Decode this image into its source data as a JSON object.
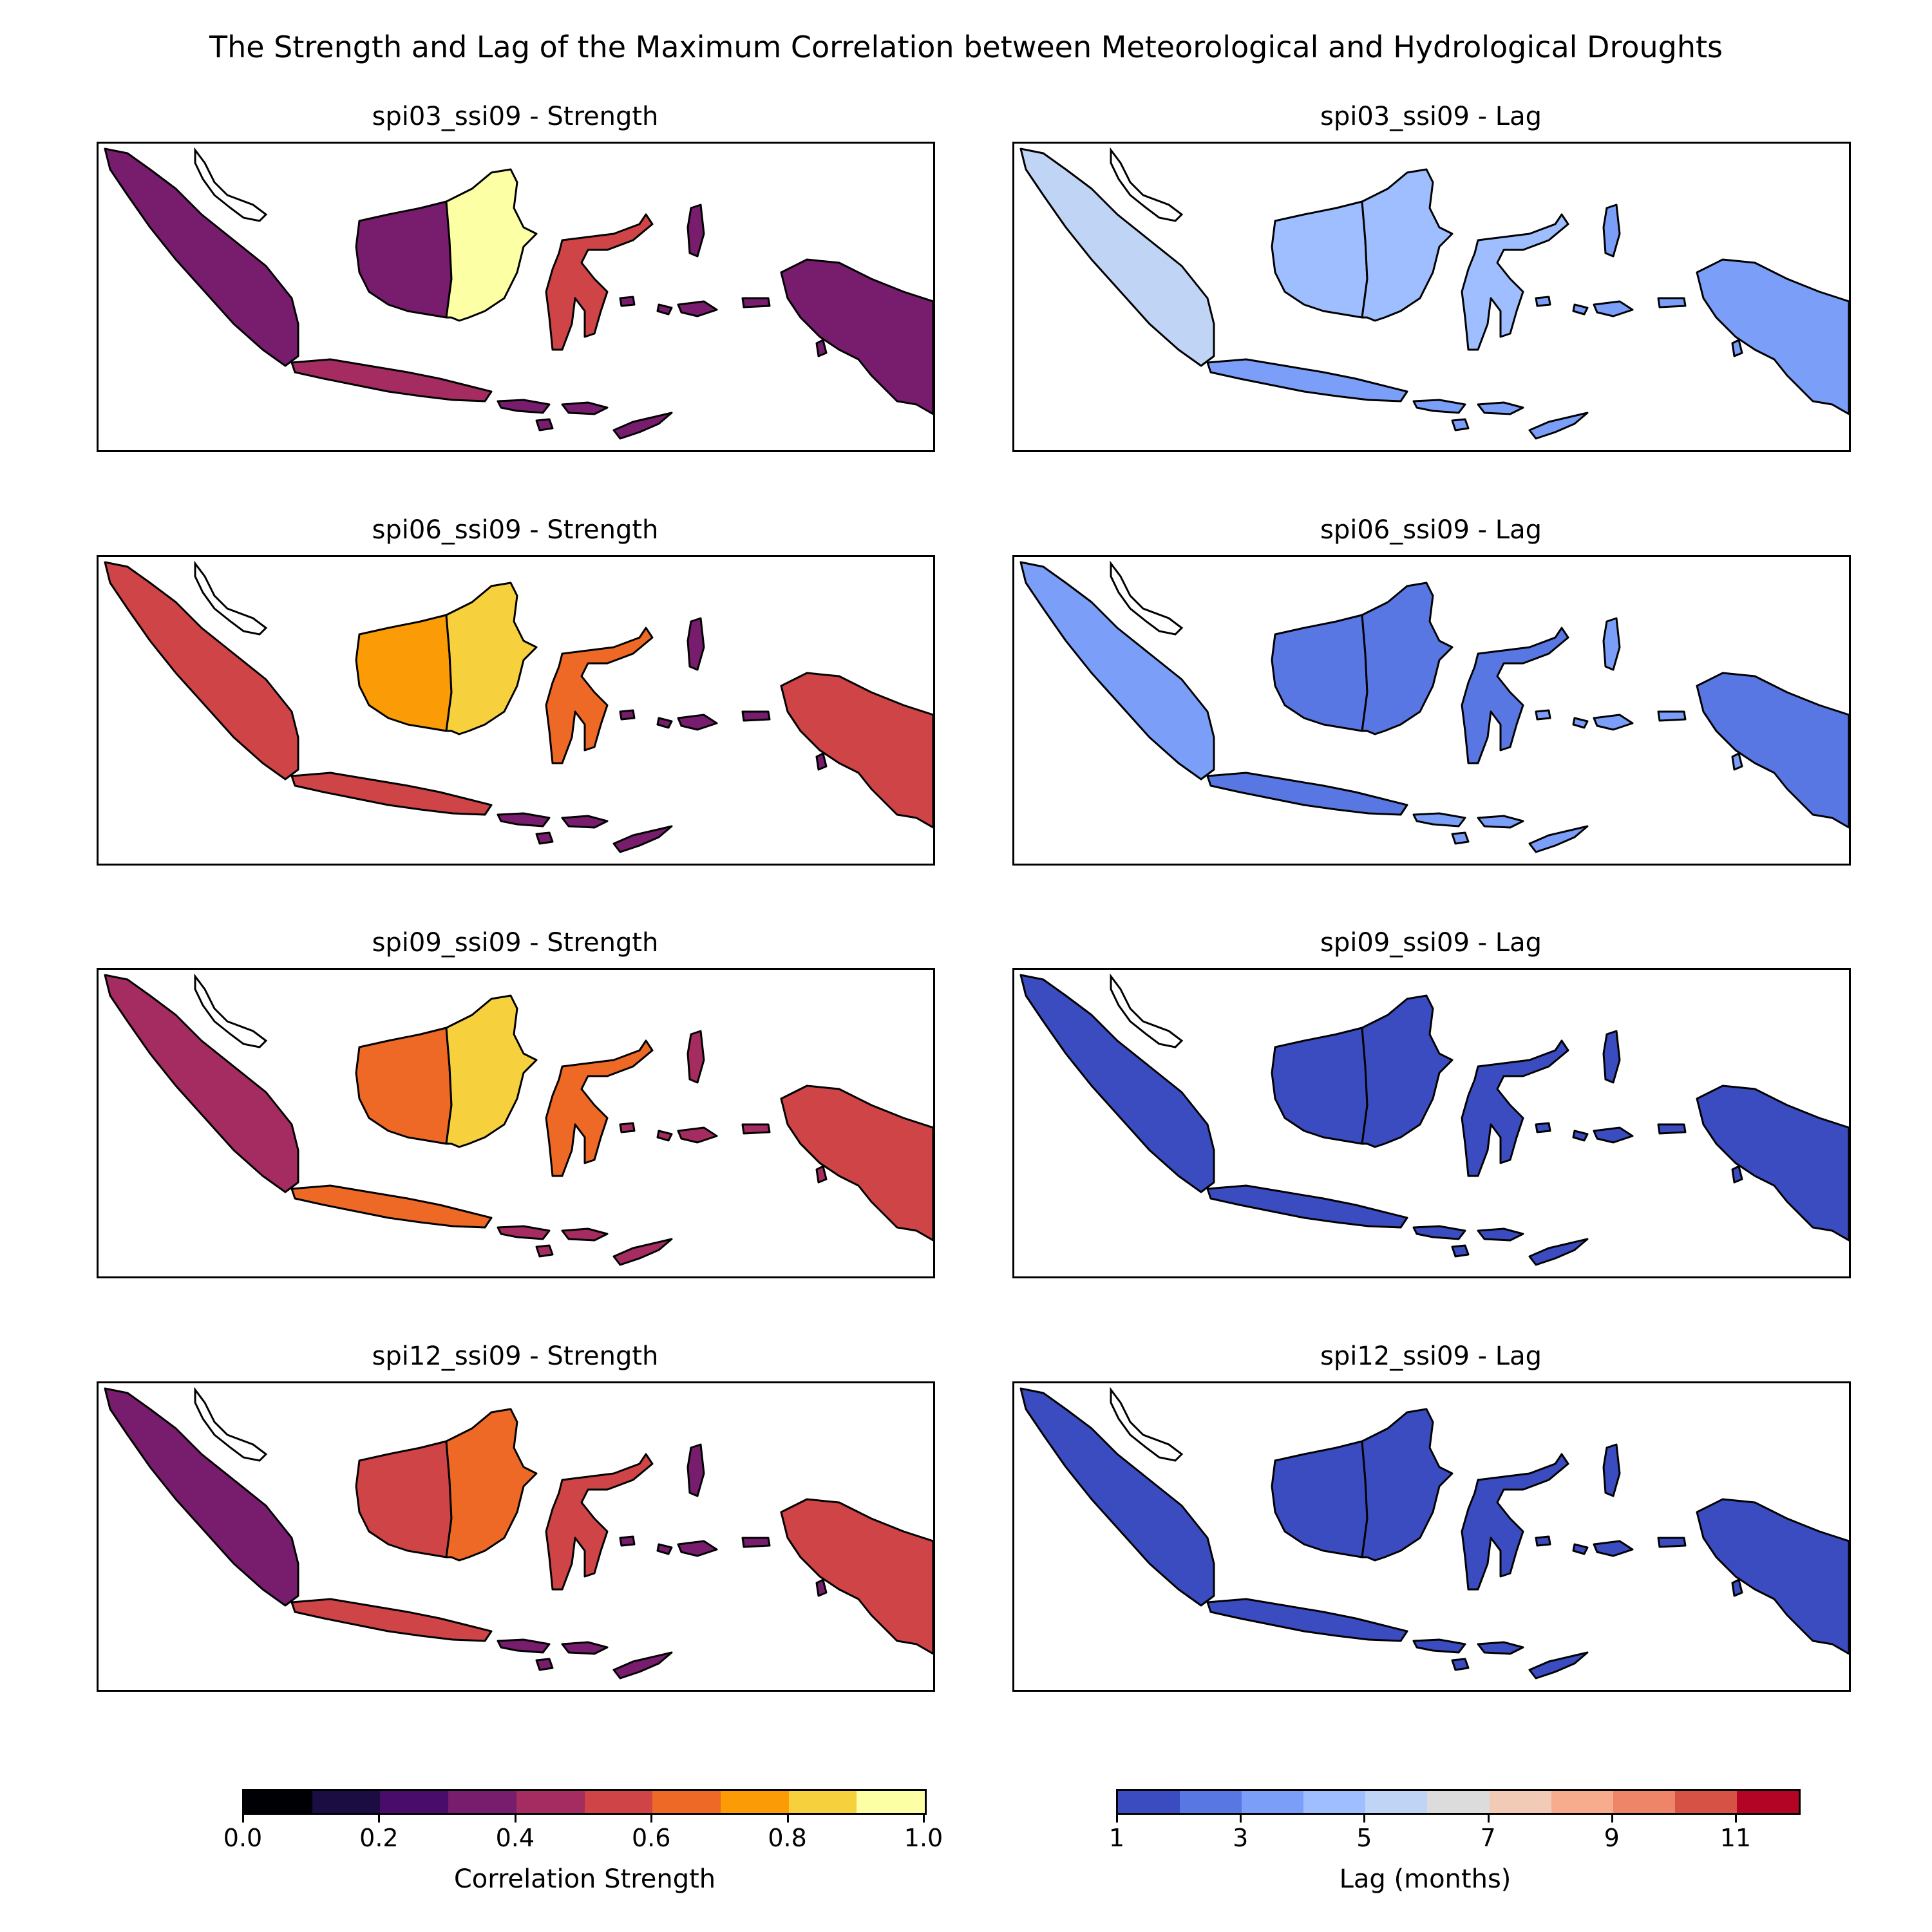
{
  "figure": {
    "title": "The Strength and Lag of the Maximum Correlation between Meteorological and Hydrological Droughts"
  },
  "panels": [
    {
      "key": "spi03_ssi09",
      "strength_title": "spi03_ssi09 - Strength",
      "lag_title": "spi03_ssi09 - Lag",
      "strength_levels": {
        "sumatra": 0.35,
        "kalimantan_w": 0.35,
        "kalimantan_e": 0.92,
        "sulawesi": 0.5,
        "java": 0.45,
        "papua": 0.3,
        "small_islands": 0.3
      },
      "lag_levels": {
        "sumatra": 5.5,
        "kalimantan_w": 4,
        "kalimantan_e": 4,
        "sulawesi": 4,
        "java": 3.5,
        "papua": 3,
        "small_islands": 3
      }
    },
    {
      "key": "spi06_ssi09",
      "strength_title": "spi06_ssi09 - Strength",
      "lag_title": "spi06_ssi09 - Lag",
      "strength_levels": {
        "sumatra": 0.55,
        "kalimantan_w": 0.75,
        "kalimantan_e": 0.85,
        "sulawesi": 0.6,
        "java": 0.55,
        "papua": 0.55,
        "small_islands": 0.35
      },
      "lag_levels": {
        "sumatra": 3,
        "kalimantan_w": 2,
        "kalimantan_e": 2,
        "sulawesi": 2,
        "java": 2.5,
        "papua": 2.5,
        "small_islands": 3
      }
    },
    {
      "key": "spi09_ssi09",
      "strength_title": "spi09_ssi09 - Strength",
      "lag_title": "spi09_ssi09 - Lag",
      "strength_levels": {
        "sumatra": 0.45,
        "kalimantan_w": 0.6,
        "kalimantan_e": 0.8,
        "sulawesi": 0.6,
        "java": 0.6,
        "papua": 0.55,
        "small_islands": 0.45
      },
      "lag_levels": {
        "sumatra": 1,
        "kalimantan_w": 1,
        "kalimantan_e": 1,
        "sulawesi": 1,
        "java": 1,
        "papua": 1,
        "small_islands": 1
      }
    },
    {
      "key": "spi12_ssi09",
      "strength_title": "spi12_ssi09 - Strength",
      "lag_title": "spi12_ssi09 - Lag",
      "strength_levels": {
        "sumatra": 0.35,
        "kalimantan_w": 0.55,
        "kalimantan_e": 0.65,
        "sulawesi": 0.5,
        "java": 0.55,
        "papua": 0.5,
        "small_islands": 0.35
      },
      "lag_levels": {
        "sumatra": 1,
        "kalimantan_w": 1,
        "kalimantan_e": 1,
        "sulawesi": 1,
        "java": 1,
        "papua": 1,
        "small_islands": 1
      }
    }
  ],
  "strength_colorbar": {
    "label": "Correlation Strength",
    "ticks": [
      "0.0",
      "0.2",
      "0.4",
      "0.6",
      "0.8",
      "1.0"
    ],
    "colors": [
      "#000004",
      "#1b0c41",
      "#4a0c6b",
      "#781c6d",
      "#a52c60",
      "#cf4446",
      "#ed6925",
      "#fb9b06",
      "#f7d13d",
      "#fcffa4"
    ]
  },
  "lag_colorbar": {
    "label": "Lag (months)",
    "ticks": [
      "1",
      "3",
      "5",
      "7",
      "9",
      "11"
    ],
    "colors": [
      "#3b4cc0",
      "#5977e3",
      "#7b9ff9",
      "#9ebeff",
      "#c0d4f5",
      "#dddcdc",
      "#f2cbb7",
      "#f7ac8e",
      "#ee8468",
      "#d65244",
      "#b40426"
    ]
  },
  "legend_colors": {
    "land_outline": "#000000",
    "empty": "#ffffff"
  }
}
